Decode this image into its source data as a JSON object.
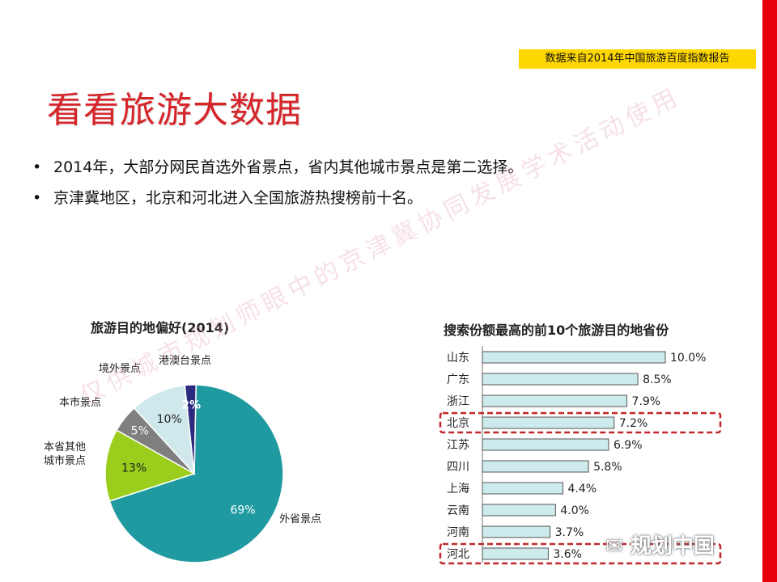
{
  "source_note": "数据来自2014年中国旅游百度指数报告",
  "title": "看看旅游大数据",
  "bullets": [
    "2014年，大部分网民首选外省景点，省内其他城市景点是第二选择。",
    "京津冀地区，北京和河北进入全国旅游热搜榜前十名。"
  ],
  "watermark": "仅供城市规划师眼中的京津冀协同发展学术活动使用",
  "wechat_label": "规划中国",
  "colors": {
    "title": "#d6252a",
    "accent_bar": "#e8000b",
    "source_bg": "#ffd700",
    "highlight": "#c0282c"
  },
  "chart_data": [
    {
      "type": "pie",
      "title": "旅游目的地偏好(2014)",
      "slices": [
        {
          "name": "外省景点",
          "value": 69,
          "label": "69%",
          "color": "#1f9aa0"
        },
        {
          "name": "本省其他城市景点",
          "value": 13,
          "label": "13%",
          "color": "#9acd1c"
        },
        {
          "name": "本市景点",
          "value": 5,
          "label": "5%",
          "color": "#7f7f7f"
        },
        {
          "name": "境外景点",
          "value": 10,
          "label": "10%",
          "color": "#cfe8ec"
        },
        {
          "name": "港澳台景点",
          "value": 2,
          "label": "2%",
          "color": "#2b2a7e"
        }
      ],
      "outer_labels": {
        "外省景点": "外省景点",
        "本省其他城市景点": "本省其他\n城市景点",
        "本市景点": "本市景点",
        "境外景点": "境外景点",
        "港澳台景点": "港澳台景点"
      }
    },
    {
      "type": "bar",
      "orientation": "horizontal",
      "title": "搜索份额最高的前10个旅游目的地省份",
      "categories": [
        "山东",
        "广东",
        "浙江",
        "北京",
        "江苏",
        "四川",
        "上海",
        "云南",
        "河南",
        "河北"
      ],
      "values": [
        10.0,
        8.5,
        7.9,
        7.2,
        6.9,
        5.8,
        4.4,
        4.0,
        3.7,
        3.6
      ],
      "labels": [
        "10.0%",
        "8.5%",
        "7.9%",
        "7.2%",
        "6.9%",
        "5.8%",
        "4.4%",
        "4.0%",
        "3.7%",
        "3.6%"
      ],
      "highlighted": [
        "北京",
        "河北"
      ],
      "bar_color": "#cdeaec",
      "xlim": [
        0,
        10.0
      ]
    }
  ]
}
